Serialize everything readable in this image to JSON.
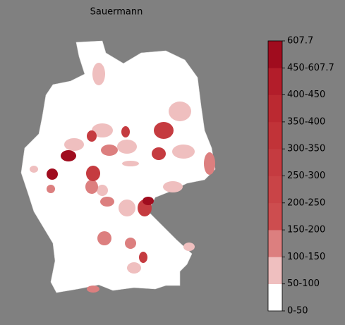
{
  "title": "Sauermann",
  "legend": {
    "labels": [
      "0-50",
      "50-100",
      "100-150",
      "150-200",
      "200-250",
      "250-300",
      "300-350",
      "350-400",
      "400-450",
      "450-607.7",
      "607.7"
    ],
    "colors": [
      "#ffffff",
      "#efbfbf",
      "#dc7f7f",
      "#cd4d4f",
      "#c94447",
      "#c53b40",
      "#c13338",
      "#bb2931",
      "#b31d2a",
      "#a00c1e"
    ]
  }
}
